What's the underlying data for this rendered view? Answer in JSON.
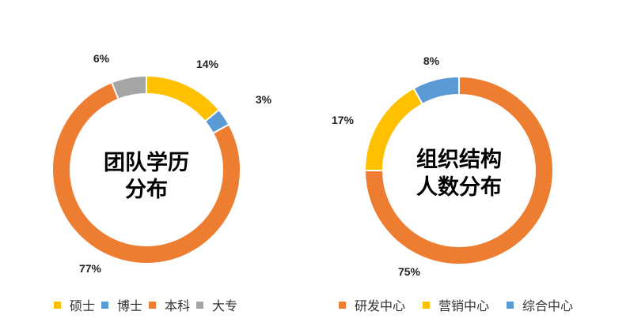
{
  "colors": {
    "orange": "#ED7D31",
    "yellow": "#FFC000",
    "blue": "#5B9BD5",
    "gray": "#A5A5A5"
  },
  "chart_data": [
    {
      "type": "pie",
      "title_lines": [
        "团队学历",
        "分布"
      ],
      "categories": [
        "硕士",
        "博士",
        "本科",
        "大专"
      ],
      "values": [
        14,
        3,
        77,
        6
      ],
      "value_labels": [
        "14%",
        "3%",
        "77%",
        "6%"
      ],
      "series_colors": [
        "#FFC000",
        "#5B9BD5",
        "#ED7D31",
        "#A5A5A5"
      ],
      "legend_position": "bottom"
    },
    {
      "type": "pie",
      "title_lines": [
        "组织结构",
        "人数分布"
      ],
      "categories": [
        "研发中心",
        "营销中心",
        "综合中心"
      ],
      "values": [
        75,
        17,
        8
      ],
      "value_labels": [
        "75%",
        "17%",
        "8%"
      ],
      "series_colors": [
        "#ED7D31",
        "#FFC000",
        "#5B9BD5"
      ],
      "legend_position": "bottom"
    }
  ]
}
